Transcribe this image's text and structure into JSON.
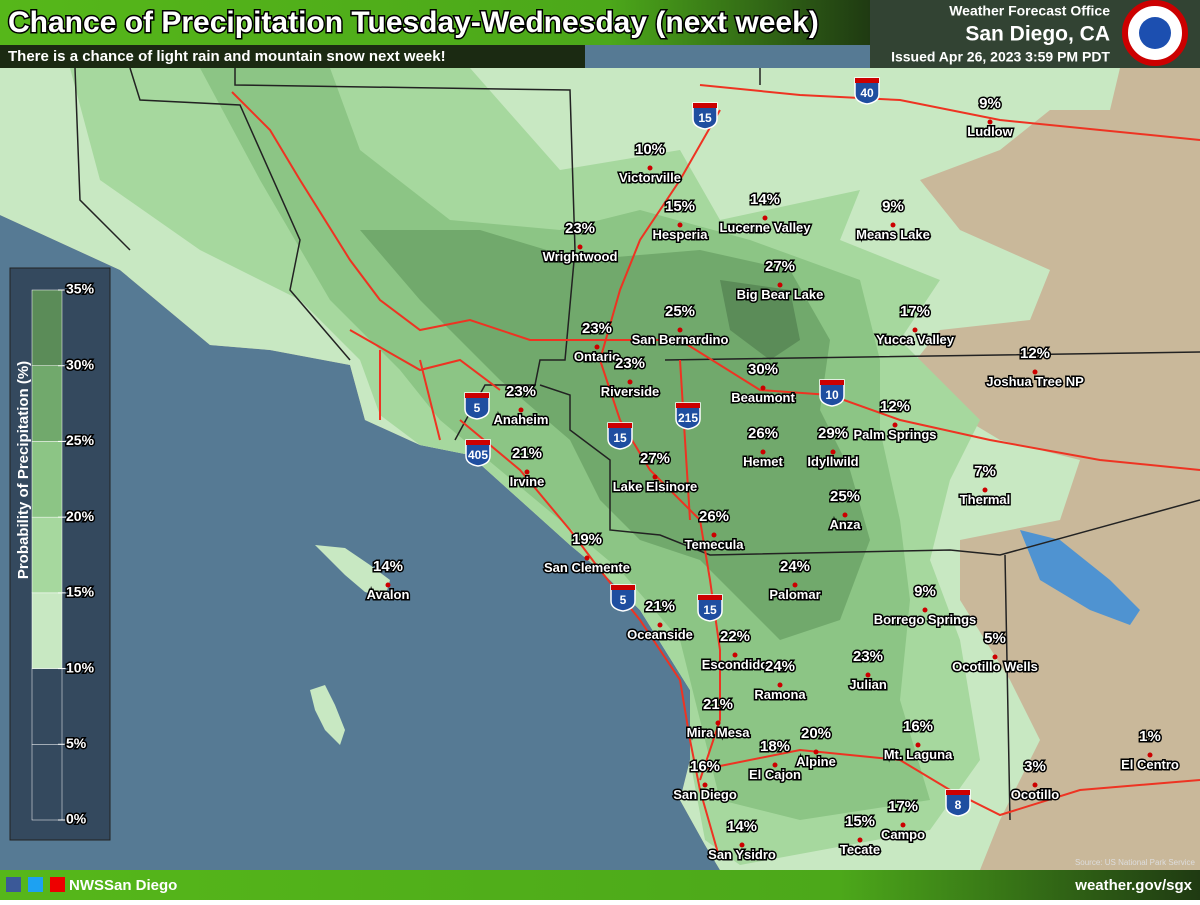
{
  "header": {
    "title": "Chance of Precipitation Tuesday-Wednesday (next week)",
    "subtitle": "There is a chance of light rain and mountain snow next week!",
    "office": "Weather Forecast Office",
    "location": "San Diego, CA",
    "issued": "Issued Apr 26, 2023 3:59 PM PDT"
  },
  "legend": {
    "title": "Probability of Precipitation (%)",
    "ticks": [
      {
        "value": 0,
        "label": "0%"
      },
      {
        "value": 5,
        "label": "5%"
      },
      {
        "value": 10,
        "label": "10%"
      },
      {
        "value": 15,
        "label": "15%"
      },
      {
        "value": 20,
        "label": "20%"
      },
      {
        "value": 25,
        "label": "25%"
      },
      {
        "value": 30,
        "label": "30%"
      },
      {
        "value": 35,
        "label": "35%"
      }
    ],
    "band_colors": [
      "#34495e",
      "#34495e",
      "#c8e8c2",
      "#a6d89e",
      "#8cc585",
      "#71a96c",
      "#5b8c58"
    ]
  },
  "places": [
    {
      "name": "Victorville",
      "value": 10,
      "label": "10%"
    },
    {
      "name": "Ludlow",
      "value": 9,
      "label": "9%"
    },
    {
      "name": "Hesperia",
      "value": 15,
      "label": "15%"
    },
    {
      "name": "Lucerne Valley",
      "value": 14,
      "label": "14%"
    },
    {
      "name": "Means Lake",
      "value": 9,
      "label": "9%"
    },
    {
      "name": "Wrightwood",
      "value": 23,
      "label": "23%"
    },
    {
      "name": "Big Bear Lake",
      "value": 27,
      "label": "27%"
    },
    {
      "name": "Ontario",
      "value": 23,
      "label": "23%"
    },
    {
      "name": "San Bernardino",
      "value": 25,
      "label": "25%"
    },
    {
      "name": "Yucca Valley",
      "value": 17,
      "label": "17%"
    },
    {
      "name": "Joshua Tree NP",
      "value": 12,
      "label": "12%"
    },
    {
      "name": "Riverside",
      "value": 23,
      "label": "23%"
    },
    {
      "name": "Beaumont",
      "value": 30,
      "label": "30%"
    },
    {
      "name": "Anaheim",
      "value": 23,
      "label": "23%"
    },
    {
      "name": "Palm Springs",
      "value": 12,
      "label": "12%"
    },
    {
      "name": "Hemet",
      "value": 26,
      "label": "26%"
    },
    {
      "name": "Idyllwild",
      "value": 29,
      "label": "29%"
    },
    {
      "name": "Irvine",
      "value": 21,
      "label": "21%"
    },
    {
      "name": "Lake Elsinore",
      "value": 27,
      "label": "27%"
    },
    {
      "name": "Thermal",
      "value": 7,
      "label": "7%"
    },
    {
      "name": "Anza",
      "value": 25,
      "label": "25%"
    },
    {
      "name": "Temecula",
      "value": 26,
      "label": "26%"
    },
    {
      "name": "San Clemente",
      "value": 19,
      "label": "19%"
    },
    {
      "name": "Avalon",
      "value": 14,
      "label": "14%"
    },
    {
      "name": "Palomar",
      "value": 24,
      "label": "24%"
    },
    {
      "name": "Borrego Springs",
      "value": 9,
      "label": "9%"
    },
    {
      "name": "Oceanside",
      "value": 21,
      "label": "21%"
    },
    {
      "name": "Ocotillo Wells",
      "value": 5,
      "label": "5%"
    },
    {
      "name": "Escondido",
      "value": 22,
      "label": "22%"
    },
    {
      "name": "Julian",
      "value": 23,
      "label": "23%"
    },
    {
      "name": "Ramona",
      "value": 24,
      "label": "24%"
    },
    {
      "name": "Mira Mesa",
      "value": 21,
      "label": "21%"
    },
    {
      "name": "Mt. Laguna",
      "value": 16,
      "label": "16%"
    },
    {
      "name": "Alpine",
      "value": 20,
      "label": "20%"
    },
    {
      "name": "El Cajon",
      "value": 18,
      "label": "18%"
    },
    {
      "name": "El Centro",
      "value": 1,
      "label": "1%"
    },
    {
      "name": "San Diego",
      "value": 16,
      "label": "16%"
    },
    {
      "name": "Ocotillo",
      "value": 3,
      "label": "3%"
    },
    {
      "name": "Campo",
      "value": 17,
      "label": "17%"
    },
    {
      "name": "Tecate",
      "value": 15,
      "label": "15%"
    },
    {
      "name": "San Ysidro",
      "value": 14,
      "label": "14%"
    }
  ],
  "highways": [
    "15",
    "40",
    "5",
    "405",
    "15",
    "215",
    "10",
    "5",
    "15",
    "8"
  ],
  "source": "Source: US National Park Service",
  "footer": {
    "social": "NWSSan Diego",
    "website": "weather.gov/sgx"
  }
}
